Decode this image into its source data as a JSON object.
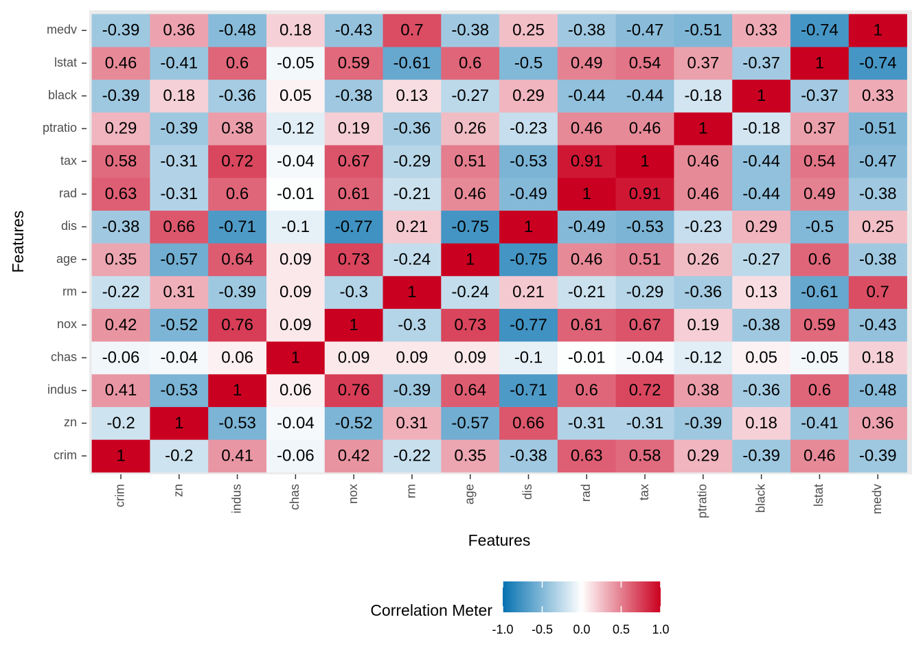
{
  "chart_data": {
    "type": "heatmap",
    "x_label": "Features",
    "y_label": "Features",
    "x_categories": [
      "crim",
      "zn",
      "indus",
      "chas",
      "nox",
      "rm",
      "age",
      "dis",
      "rad",
      "tax",
      "ptratio",
      "black",
      "lstat",
      "medv"
    ],
    "y_categories": [
      "crim",
      "zn",
      "indus",
      "chas",
      "nox",
      "rm",
      "age",
      "dis",
      "rad",
      "tax",
      "ptratio",
      "black",
      "lstat",
      "medv"
    ],
    "values": [
      [
        1,
        -0.2,
        0.41,
        -0.06,
        0.42,
        -0.22,
        0.35,
        -0.38,
        0.63,
        0.58,
        0.29,
        -0.39,
        0.46,
        -0.39
      ],
      [
        -0.2,
        1,
        -0.53,
        -0.04,
        -0.52,
        0.31,
        -0.57,
        0.66,
        -0.31,
        -0.31,
        -0.39,
        0.18,
        -0.41,
        0.36
      ],
      [
        0.41,
        -0.53,
        1,
        0.06,
        0.76,
        -0.39,
        0.64,
        -0.71,
        0.6,
        0.72,
        0.38,
        -0.36,
        0.6,
        -0.48
      ],
      [
        -0.06,
        -0.04,
        0.06,
        1,
        0.09,
        0.09,
        0.09,
        -0.1,
        -0.01,
        -0.04,
        -0.12,
        0.05,
        -0.05,
        0.18
      ],
      [
        0.42,
        -0.52,
        0.76,
        0.09,
        1,
        -0.3,
        0.73,
        -0.77,
        0.61,
        0.67,
        0.19,
        -0.38,
        0.59,
        -0.43
      ],
      [
        -0.22,
        0.31,
        -0.39,
        0.09,
        -0.3,
        1,
        -0.24,
        0.21,
        -0.21,
        -0.29,
        -0.36,
        0.13,
        -0.61,
        0.7
      ],
      [
        0.35,
        -0.57,
        0.64,
        0.09,
        0.73,
        -0.24,
        1,
        -0.75,
        0.46,
        0.51,
        0.26,
        -0.27,
        0.6,
        -0.38
      ],
      [
        -0.38,
        0.66,
        -0.71,
        -0.1,
        -0.77,
        0.21,
        -0.75,
        1,
        -0.49,
        -0.53,
        -0.23,
        0.29,
        -0.5,
        0.25
      ],
      [
        0.63,
        -0.31,
        0.6,
        -0.01,
        0.61,
        -0.21,
        0.46,
        -0.49,
        1,
        0.91,
        0.46,
        -0.44,
        0.49,
        -0.38
      ],
      [
        0.58,
        -0.31,
        0.72,
        -0.04,
        0.67,
        -0.29,
        0.51,
        -0.53,
        0.91,
        1,
        0.46,
        -0.44,
        0.54,
        -0.47
      ],
      [
        0.29,
        -0.39,
        0.38,
        -0.12,
        0.19,
        -0.36,
        0.26,
        -0.23,
        0.46,
        0.46,
        1,
        -0.18,
        0.37,
        -0.51
      ],
      [
        -0.39,
        0.18,
        -0.36,
        0.05,
        -0.38,
        0.13,
        -0.27,
        0.29,
        -0.44,
        -0.44,
        -0.18,
        1,
        -0.37,
        0.33
      ],
      [
        0.46,
        -0.41,
        0.6,
        -0.05,
        0.59,
        -0.61,
        0.6,
        -0.5,
        0.49,
        0.54,
        0.37,
        -0.37,
        1,
        -0.74
      ],
      [
        -0.39,
        0.36,
        -0.48,
        0.18,
        -0.43,
        0.7,
        -0.38,
        0.25,
        -0.38,
        -0.47,
        -0.51,
        0.33,
        -0.74,
        1
      ]
    ],
    "colorscale": [
      "#0571b0",
      "#ffffff",
      "#ca0020"
    ],
    "colorbar": {
      "title": "Correlation Meter",
      "lim": [
        -1,
        1
      ],
      "ticks": [
        {
          "value": -1,
          "label": "-1.0"
        },
        -0.5,
        {
          "value": 0,
          "label": "0.0"
        },
        0.5,
        {
          "value": 1,
          "label": "1.0"
        }
      ]
    }
  }
}
